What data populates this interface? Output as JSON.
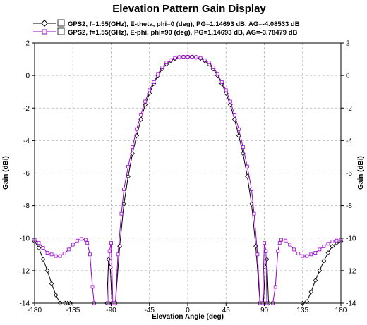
{
  "chart_data": {
    "type": "line",
    "title": "Elevation Pattern Gain Display",
    "xlabel": "Elevation Angle (deg)",
    "ylabel": "Gain (dBi)",
    "ylabel_right": "Gain (dBi)",
    "xlim": [
      -180,
      180
    ],
    "ylim": [
      -14,
      2
    ],
    "x_ticks": [
      -180,
      -135,
      -90,
      -45,
      0,
      45,
      90,
      135,
      180
    ],
    "y_ticks": [
      2,
      0,
      -2,
      -4,
      -6,
      -8,
      -10,
      -12,
      -14
    ],
    "grid": true,
    "legend_position": "top",
    "series": [
      {
        "name": "GPS2, f=1.55(GHz), E-theta, phi=0 (deg), PG=1.14693 dB, AG=-4.08533 dB",
        "color": "#000000",
        "marker": "diamond",
        "points": [
          [
            -180,
            -10.2
          ],
          [
            -175,
            -10.6
          ],
          [
            -170,
            -11.3
          ],
          [
            -165,
            -12.0
          ],
          [
            -160,
            -12.8
          ],
          [
            -155,
            -13.5
          ],
          [
            -150,
            -14.0
          ],
          [
            -144,
            -14.0
          ],
          [
            -141,
            -14.0
          ],
          [
            -138,
            -14.0
          ],
          [
            -95,
            -14.0
          ],
          [
            -93,
            -11.3
          ],
          [
            -91,
            -11.8
          ],
          [
            -89,
            -14.0
          ],
          [
            -85,
            -14.0
          ],
          [
            -80,
            -10.5
          ],
          [
            -75,
            -7.9
          ],
          [
            -70,
            -6.2
          ],
          [
            -65,
            -4.8
          ],
          [
            -60,
            -3.7
          ],
          [
            -55,
            -2.7
          ],
          [
            -50,
            -1.8
          ],
          [
            -45,
            -1.1
          ],
          [
            -40,
            -0.5
          ],
          [
            -35,
            0.0
          ],
          [
            -30,
            0.4
          ],
          [
            -25,
            0.7
          ],
          [
            -20,
            0.9
          ],
          [
            -15,
            1.05
          ],
          [
            -10,
            1.12
          ],
          [
            -5,
            1.14
          ],
          [
            0,
            1.14
          ],
          [
            5,
            1.14
          ],
          [
            10,
            1.12
          ],
          [
            15,
            1.05
          ],
          [
            20,
            0.9
          ],
          [
            25,
            0.7
          ],
          [
            30,
            0.4
          ],
          [
            35,
            0.0
          ],
          [
            40,
            -0.5
          ],
          [
            45,
            -1.1
          ],
          [
            50,
            -1.8
          ],
          [
            55,
            -2.7
          ],
          [
            60,
            -3.7
          ],
          [
            65,
            -4.8
          ],
          [
            70,
            -6.2
          ],
          [
            75,
            -7.9
          ],
          [
            80,
            -10.5
          ],
          [
            85,
            -14.0
          ],
          [
            89,
            -14.0
          ],
          [
            91,
            -11.8
          ],
          [
            93,
            -11.3
          ],
          [
            95,
            -14.0
          ],
          [
            135,
            -14.0
          ],
          [
            140,
            -13.9
          ],
          [
            145,
            -13.3
          ],
          [
            150,
            -12.6
          ],
          [
            155,
            -12.0
          ],
          [
            160,
            -11.4
          ],
          [
            165,
            -10.9
          ],
          [
            170,
            -10.5
          ],
          [
            175,
            -10.3
          ],
          [
            180,
            -10.2
          ]
        ]
      },
      {
        "name": "GPS2, f=1.55(GHz), E-phi, phi=90 (deg), PG=1.14693 dB, AG=-3.78479 dB",
        "color": "#9900cc",
        "marker": "square",
        "points": [
          [
            -180,
            -10.1
          ],
          [
            -175,
            -10.3
          ],
          [
            -170,
            -10.6
          ],
          [
            -165,
            -10.9
          ],
          [
            -160,
            -11.0
          ],
          [
            -155,
            -11.1
          ],
          [
            -150,
            -11.1
          ],
          [
            -145,
            -10.95
          ],
          [
            -140,
            -10.7
          ],
          [
            -135,
            -10.4
          ],
          [
            -130,
            -10.15
          ],
          [
            -125,
            -10.05
          ],
          [
            -120,
            -10.1
          ],
          [
            -118,
            -10.3
          ],
          [
            -115,
            -11.0
          ],
          [
            -112,
            -13.0
          ],
          [
            -110,
            -14.0
          ],
          [
            -93,
            -14.0
          ],
          [
            -92,
            -10.8
          ],
          [
            -90,
            -10.3
          ],
          [
            -88,
            -14.0
          ],
          [
            -85,
            -14.0
          ],
          [
            -82,
            -11.0
          ],
          [
            -78,
            -8.5
          ],
          [
            -75,
            -7.0
          ],
          [
            -70,
            -5.6
          ],
          [
            -65,
            -4.4
          ],
          [
            -60,
            -3.3
          ],
          [
            -55,
            -2.4
          ],
          [
            -50,
            -1.6
          ],
          [
            -45,
            -0.9
          ],
          [
            -40,
            -0.4
          ],
          [
            -35,
            0.1
          ],
          [
            -30,
            0.5
          ],
          [
            -25,
            0.8
          ],
          [
            -20,
            0.95
          ],
          [
            -15,
            1.08
          ],
          [
            -10,
            1.13
          ],
          [
            -5,
            1.15
          ],
          [
            0,
            1.15
          ],
          [
            5,
            1.15
          ],
          [
            10,
            1.13
          ],
          [
            15,
            1.08
          ],
          [
            20,
            0.95
          ],
          [
            25,
            0.8
          ],
          [
            30,
            0.5
          ],
          [
            35,
            0.1
          ],
          [
            40,
            -0.4
          ],
          [
            45,
            -0.9
          ],
          [
            50,
            -1.6
          ],
          [
            55,
            -2.4
          ],
          [
            60,
            -3.3
          ],
          [
            65,
            -4.4
          ],
          [
            70,
            -5.6
          ],
          [
            75,
            -7.0
          ],
          [
            78,
            -8.5
          ],
          [
            82,
            -11.0
          ],
          [
            85,
            -14.0
          ],
          [
            88,
            -14.0
          ],
          [
            90,
            -10.3
          ],
          [
            92,
            -10.8
          ],
          [
            93,
            -14.0
          ],
          [
            100,
            -14.0
          ],
          [
            103,
            -13.0
          ],
          [
            106,
            -10.8
          ],
          [
            108,
            -10.3
          ],
          [
            110,
            -10.1
          ],
          [
            115,
            -10.15
          ],
          [
            120,
            -10.4
          ],
          [
            125,
            -10.7
          ],
          [
            130,
            -10.95
          ],
          [
            135,
            -11.1
          ],
          [
            140,
            -11.1
          ],
          [
            145,
            -11.0
          ],
          [
            150,
            -10.9
          ],
          [
            155,
            -10.7
          ],
          [
            160,
            -10.5
          ],
          [
            165,
            -10.35
          ],
          [
            170,
            -10.2
          ],
          [
            175,
            -10.15
          ],
          [
            180,
            -10.1
          ]
        ]
      }
    ]
  }
}
